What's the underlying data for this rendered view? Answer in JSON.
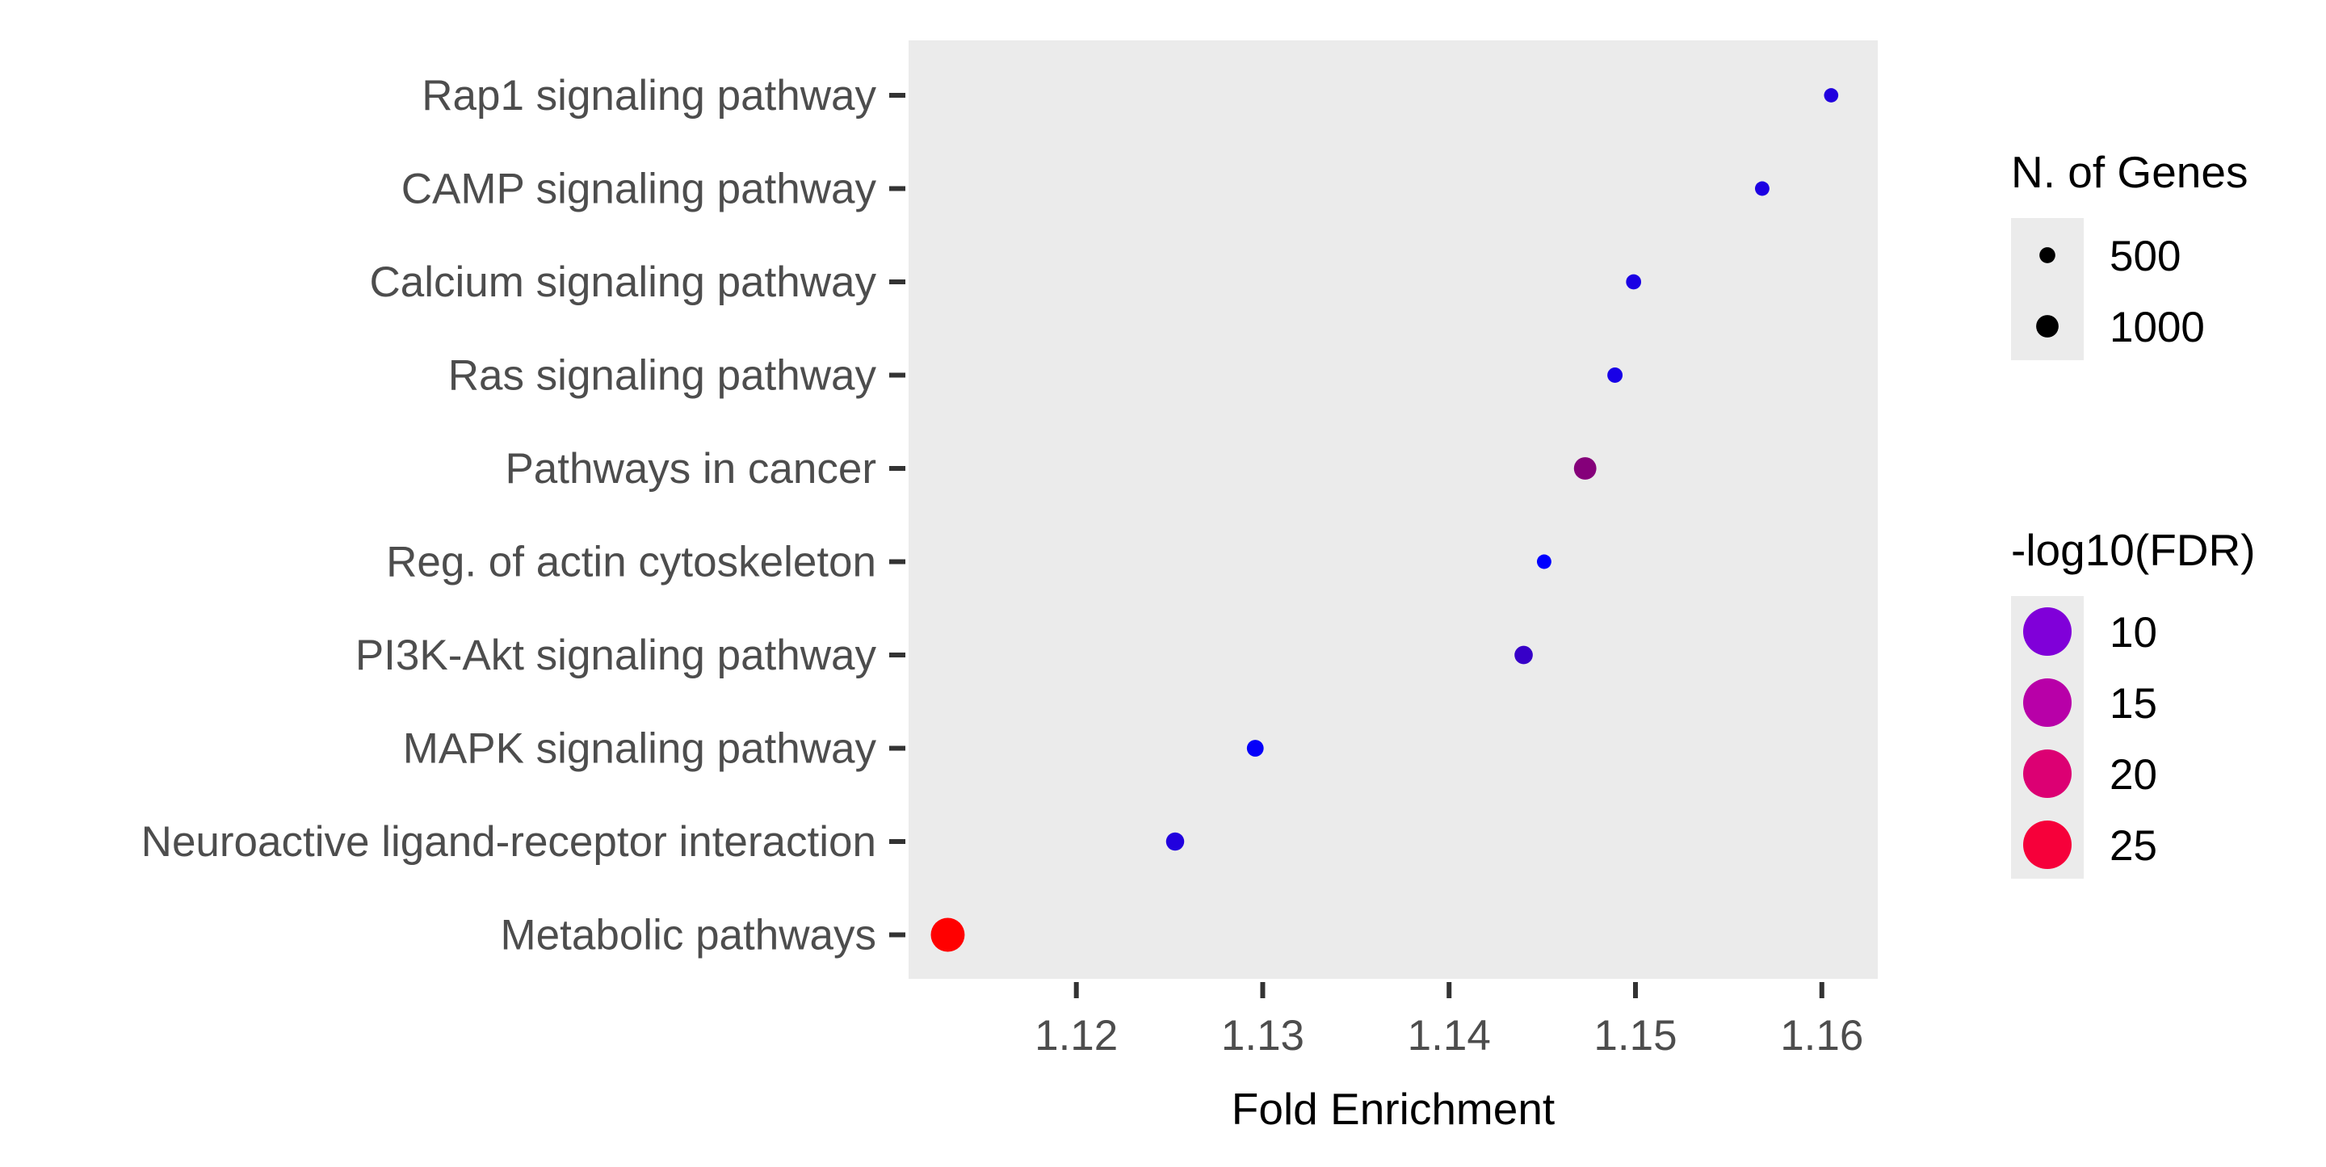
{
  "chart_data": {
    "type": "scatter",
    "title": "",
    "xlabel": "Fold Enrichment",
    "ylabel": "",
    "xlim": [
      1.111,
      1.163
    ],
    "x_ticks": [
      "1.12",
      "1.13",
      "1.14",
      "1.15",
      "1.16"
    ],
    "x_tick_values": [
      1.12,
      1.13,
      1.14,
      1.15,
      1.16
    ],
    "grid": false,
    "panel_background": "#ebebeb",
    "points": [
      {
        "category": "Rap1 signaling pathway",
        "fold_enrichment": 1.1605,
        "n_genes": 210,
        "neg_log10_fdr": 8.0
      },
      {
        "category": "CAMP signaling pathway",
        "fold_enrichment": 1.1568,
        "n_genes": 215,
        "neg_log10_fdr": 7.6
      },
      {
        "category": "Calcium signaling pathway",
        "fold_enrichment": 1.1499,
        "n_genes": 235,
        "neg_log10_fdr": 7.4
      },
      {
        "category": "Ras signaling pathway",
        "fold_enrichment": 1.1489,
        "n_genes": 240,
        "neg_log10_fdr": 7.2
      },
      {
        "category": "Pathways in cancer",
        "fold_enrichment": 1.1473,
        "n_genes": 520,
        "neg_log10_fdr": 17.0
      },
      {
        "category": "Reg. of actin cytoskeleton",
        "fold_enrichment": 1.1451,
        "n_genes": 215,
        "neg_log10_fdr": 5.0
      },
      {
        "category": "PI3K-Akt signaling pathway",
        "fold_enrichment": 1.144,
        "n_genes": 345,
        "neg_log10_fdr": 10.0
      },
      {
        "category": "MAPK signaling pathway",
        "fold_enrichment": 1.1296,
        "n_genes": 290,
        "neg_log10_fdr": 5.5
      },
      {
        "category": "Neuroactive ligand-receptor interaction",
        "fold_enrichment": 1.1253,
        "n_genes": 340,
        "neg_log10_fdr": 8.0
      },
      {
        "category": "Metabolic pathways",
        "fold_enrichment": 1.1131,
        "n_genes": 1180,
        "neg_log10_fdr": 28.0
      }
    ],
    "legend_size": {
      "title": "N. of Genes",
      "placement": "right-top",
      "entries": [
        {
          "label": "500",
          "value": 500
        },
        {
          "label": "1000",
          "value": 1000
        }
      ]
    },
    "legend_color": {
      "title": "-log10(FDR)",
      "placement": "right-middle",
      "low_color": "#0000ff",
      "high_color": "#ff0000",
      "range": [
        5,
        28
      ],
      "entries": [
        {
          "label": "10",
          "value": 10,
          "color": "#8000d9"
        },
        {
          "label": "15",
          "value": 15,
          "color": "#b800a8"
        },
        {
          "label": "20",
          "value": 20,
          "color": "#dc0073"
        },
        {
          "label": "25",
          "value": 25,
          "color": "#f6003a"
        }
      ]
    }
  }
}
